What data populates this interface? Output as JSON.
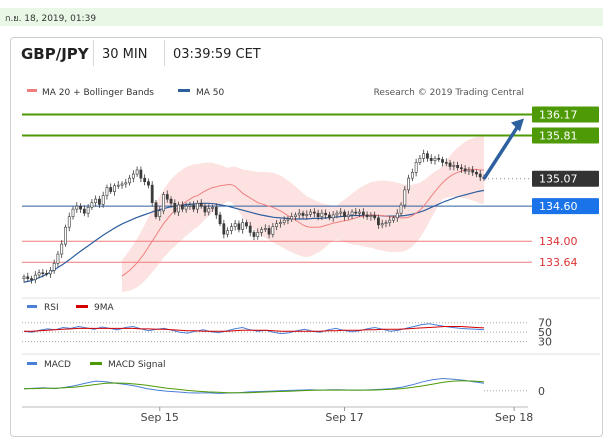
{
  "timestamp": "ก.ย. 18, 2019, 01:39",
  "header": {
    "pair": "GBP/JPY",
    "interval": "30 MIN",
    "time": "03:39:59 CET"
  },
  "legend": {
    "ma20_label": "MA 20 + Bollinger Bands",
    "ma50_label": "MA 50",
    "credit": "Research © 2019 Trading Central",
    "rsi_label": "RSI",
    "rsi_ma_label": "9MA",
    "macd_label": "MACD",
    "macd_signal_label": "MACD Signal"
  },
  "colors": {
    "candle": "#3a3a3a",
    "ma20": "#f08080",
    "bands_fill": "#fde2e2",
    "ma50": "#2e5f9e",
    "resistance": "#4e9a06",
    "support": "#f07a7a",
    "pivot": "#2e5f9e",
    "current": "#333333",
    "arrow": "#2e5f9e"
  },
  "chart_data": [
    {
      "type": "candlestick",
      "title": "GBP/JPY",
      "ylim": [
        133.25,
        136.35
      ],
      "xlim": [
        0,
        140
      ],
      "x_ticks": [
        {
          "index": 36,
          "label": "Sep 15"
        },
        {
          "index": 85,
          "label": "Sep 17"
        },
        {
          "index": 130,
          "label": "Sep 18"
        }
      ],
      "levels": [
        {
          "value": 136.17,
          "label": "136.17",
          "kind": "resistance",
          "boxed": true
        },
        {
          "value": 135.81,
          "label": "135.81",
          "kind": "resistance",
          "boxed": true
        },
        {
          "value": 135.07,
          "label": "135.07",
          "kind": "current",
          "boxed": true
        },
        {
          "value": 134.6,
          "label": "134.60",
          "kind": "pivot",
          "boxed": true
        },
        {
          "value": 134.0,
          "label": "134.00",
          "kind": "support",
          "boxed": false
        },
        {
          "value": 133.64,
          "label": "133.64",
          "kind": "support",
          "boxed": false
        }
      ],
      "closes": [
        133.39,
        133.36,
        133.34,
        133.42,
        133.46,
        133.45,
        133.44,
        133.5,
        133.62,
        133.78,
        133.95,
        134.24,
        134.42,
        134.55,
        134.6,
        134.55,
        134.48,
        134.58,
        134.66,
        134.72,
        134.63,
        134.78,
        134.92,
        134.85,
        134.95,
        134.96,
        134.98,
        135.0,
        135.08,
        135.15,
        135.22,
        135.08,
        135.02,
        134.96,
        134.66,
        134.42,
        134.52,
        134.8,
        134.72,
        134.65,
        134.5,
        134.62,
        134.55,
        134.6,
        134.62,
        134.55,
        134.65,
        134.6,
        134.5,
        134.56,
        134.58,
        134.45,
        134.3,
        134.12,
        134.18,
        134.25,
        134.3,
        134.2,
        134.32,
        134.26,
        134.15,
        134.08,
        134.15,
        134.2,
        134.22,
        134.12,
        134.25,
        134.3,
        134.32,
        134.36,
        134.38,
        134.42,
        134.45,
        134.48,
        134.44,
        134.46,
        134.5,
        134.48,
        134.42,
        134.48,
        134.45,
        134.4,
        134.45,
        134.48,
        134.5,
        134.42,
        134.45,
        134.5,
        134.48,
        134.5,
        134.45,
        134.42,
        134.44,
        134.4,
        134.28,
        134.3,
        134.32,
        134.36,
        134.4,
        134.48,
        134.62,
        134.88,
        135.08,
        135.18,
        135.35,
        135.42,
        135.5,
        135.42,
        135.38,
        135.42,
        135.4,
        135.35,
        135.34,
        135.28,
        135.3,
        135.26,
        135.24,
        135.2,
        135.22,
        135.18,
        135.15,
        135.1,
        135.07
      ],
      "ma20": [
        133.4,
        133.45,
        133.5,
        133.56,
        133.63,
        133.71,
        133.8,
        133.9,
        134.0,
        134.1,
        134.2,
        134.3,
        134.38,
        134.46,
        134.52,
        134.58,
        134.63,
        134.68,
        134.72,
        134.76,
        134.78,
        134.82,
        134.86,
        134.89,
        134.92,
        134.93,
        134.95,
        134.96,
        134.97,
        134.97,
        134.94,
        134.88,
        134.82,
        134.78,
        134.74,
        134.7,
        134.66,
        134.64,
        134.62,
        134.6,
        134.58,
        134.55,
        134.52,
        134.48,
        134.44,
        134.4,
        134.36,
        134.32,
        134.28,
        134.25,
        134.24,
        134.24,
        134.24,
        134.25,
        134.27,
        134.29,
        134.31,
        134.32,
        134.34,
        134.35,
        134.36,
        134.38,
        134.4,
        134.42,
        134.43,
        134.44,
        134.45,
        134.45,
        134.44,
        134.44,
        134.43,
        134.42,
        134.42,
        134.41,
        134.4,
        134.4,
        134.41,
        134.44,
        134.48,
        134.53,
        134.6,
        134.68,
        134.77,
        134.85,
        134.93,
        135.0,
        135.06,
        135.11,
        135.15,
        135.18,
        135.2,
        135.22,
        135.23,
        135.23,
        135.23,
        135.22,
        135.22
      ],
      "ma50": [
        133.3,
        133.32,
        133.36,
        133.41,
        133.47,
        133.54,
        133.61,
        133.69,
        133.78,
        133.86,
        133.94,
        134.02,
        134.1,
        134.17,
        134.24,
        134.3,
        134.35,
        134.4,
        134.44,
        134.48,
        134.52,
        134.55,
        134.58,
        134.6,
        134.62,
        134.63,
        134.64,
        134.65,
        134.65,
        134.64,
        134.62,
        134.6,
        134.57,
        134.54,
        134.51,
        134.48,
        134.45,
        134.43,
        134.41,
        134.4,
        134.39,
        134.38,
        134.38,
        134.38,
        134.39,
        134.39,
        134.4,
        134.41,
        134.42,
        134.43,
        134.44,
        134.44,
        134.44,
        134.44,
        134.44,
        134.43,
        134.43,
        134.43,
        134.44,
        134.46,
        134.49,
        134.53,
        134.58,
        134.63,
        134.68,
        134.72,
        134.76,
        134.79,
        134.82,
        134.85,
        134.87
      ],
      "bands_half_width": 0.55,
      "projection": {
        "from": 135.07,
        "to": 136.17
      }
    },
    {
      "type": "line",
      "title": "RSI",
      "ylim": [
        25,
        80
      ],
      "y_ticks": [
        70,
        50,
        30
      ],
      "series": [
        {
          "name": "RSI",
          "values": [
            52,
            50,
            54,
            57,
            55,
            60,
            58,
            62,
            59,
            56,
            61,
            58,
            55,
            60,
            62,
            57,
            53,
            56,
            58,
            54,
            50,
            48,
            52,
            55,
            51,
            49,
            53,
            57,
            60,
            55,
            52,
            54,
            50,
            47,
            49,
            53,
            56,
            52,
            50,
            55,
            58,
            54,
            51,
            53,
            57,
            60,
            56,
            52,
            54,
            58,
            62,
            66,
            68,
            65,
            62,
            60,
            58,
            57,
            56,
            55
          ]
        },
        {
          "name": "9MA",
          "values": [
            52,
            52,
            53,
            54,
            55,
            56,
            57,
            58,
            58,
            58,
            58,
            58,
            58,
            58,
            58,
            57,
            57,
            56,
            56,
            55,
            54,
            53,
            53,
            52,
            52,
            52,
            52,
            53,
            54,
            54,
            54,
            54,
            53,
            52,
            52,
            52,
            52,
            52,
            52,
            53,
            53,
            54,
            54,
            54,
            55,
            55,
            56,
            56,
            56,
            57,
            58,
            59,
            60,
            61,
            62,
            62,
            62,
            61,
            60,
            59
          ]
        }
      ]
    },
    {
      "type": "line",
      "title": "MACD",
      "ylim": [
        -0.3,
        0.45
      ],
      "y_ticks": [
        0
      ],
      "series": [
        {
          "name": "MACD",
          "values": [
            0.05,
            0.07,
            0.08,
            0.06,
            0.09,
            0.14,
            0.2,
            0.26,
            0.24,
            0.2,
            0.17,
            0.12,
            0.06,
            0.02,
            -0.01,
            -0.03,
            -0.05,
            -0.06,
            -0.05,
            -0.07,
            -0.06,
            -0.05,
            -0.03,
            -0.02,
            -0.01,
            0.0,
            0.01,
            0.02,
            0.03,
            0.02,
            0.03,
            0.03,
            0.02,
            0.02,
            0.03,
            0.04,
            0.06,
            0.1,
            0.16,
            0.24,
            0.3,
            0.33,
            0.31,
            0.28,
            0.24,
            0.2
          ]
        },
        {
          "name": "MACD Signal",
          "values": [
            0.06,
            0.06,
            0.07,
            0.07,
            0.08,
            0.1,
            0.13,
            0.17,
            0.2,
            0.21,
            0.2,
            0.18,
            0.15,
            0.11,
            0.07,
            0.04,
            0.01,
            -0.01,
            -0.03,
            -0.04,
            -0.05,
            -0.05,
            -0.05,
            -0.04,
            -0.03,
            -0.02,
            -0.01,
            0.0,
            0.01,
            0.02,
            0.02,
            0.02,
            0.02,
            0.02,
            0.02,
            0.03,
            0.04,
            0.06,
            0.09,
            0.13,
            0.18,
            0.23,
            0.26,
            0.27,
            0.26,
            0.24
          ]
        }
      ]
    }
  ]
}
